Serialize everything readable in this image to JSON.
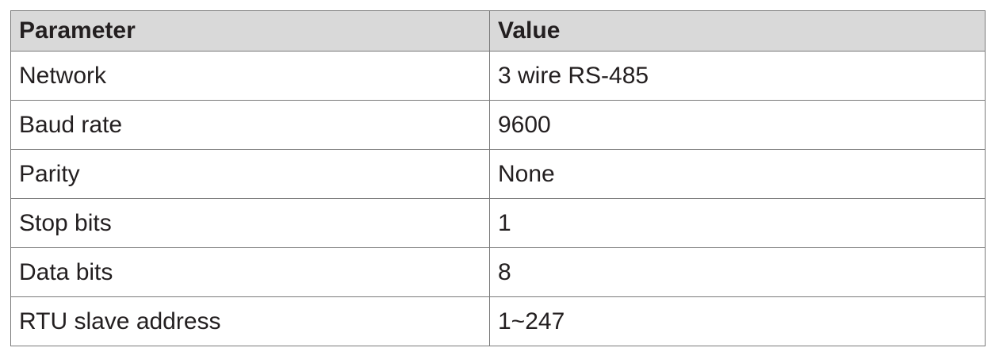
{
  "table": {
    "headers": {
      "parameter": "Parameter",
      "value": "Value"
    },
    "rows": [
      {
        "parameter": "Network",
        "value": "3 wire RS-485"
      },
      {
        "parameter": "Baud rate",
        "value": "9600"
      },
      {
        "parameter": "Parity",
        "value": "None"
      },
      {
        "parameter": "Stop bits",
        "value": "1"
      },
      {
        "parameter": "Data bits",
        "value": "8"
      },
      {
        "parameter": "RTU slave address",
        "value": "1~247"
      }
    ]
  },
  "colors": {
    "header_background": "#d9d9d9",
    "border": "#7a7a7a",
    "text": "#231f20"
  }
}
